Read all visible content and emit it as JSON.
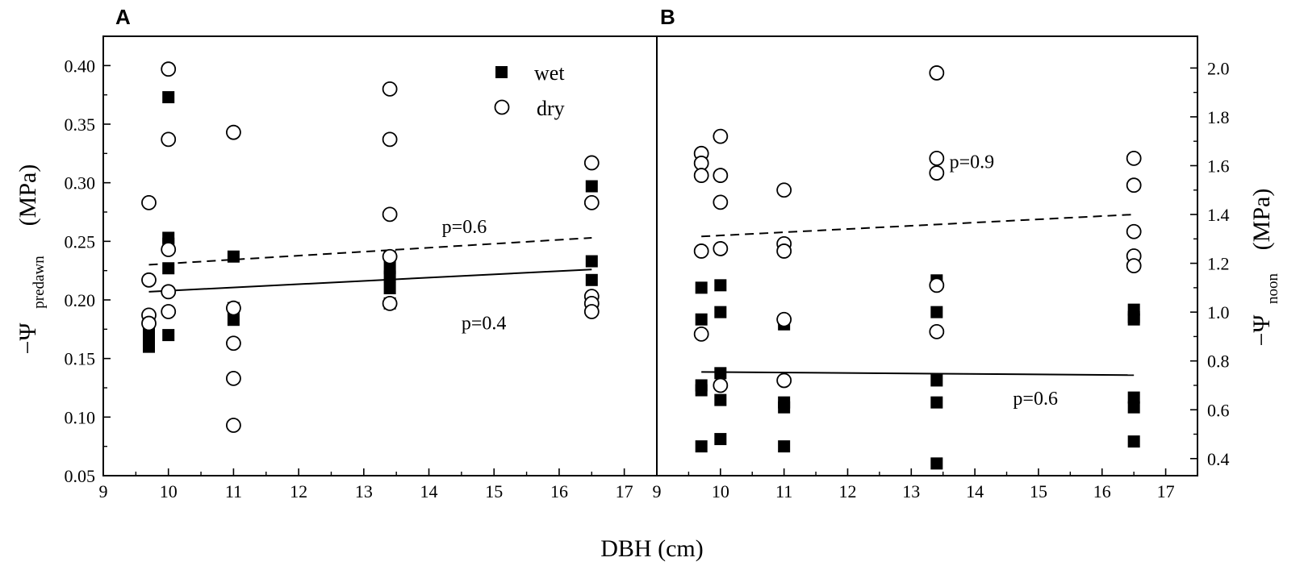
{
  "chart_data": [
    {
      "type": "scatter",
      "panel_label": "A",
      "xlabel": "DBH (cm)",
      "ylabel_main": "−Ψ",
      "ylabel_sub": "predawn",
      "ylabel_unit": "(MPa)",
      "xlim": [
        9,
        17.5
      ],
      "ylim": [
        0.05,
        0.425
      ],
      "xticks": [
        9,
        10,
        11,
        12,
        13,
        14,
        15,
        16,
        17
      ],
      "yticks": [
        "0.05",
        "0.10",
        "0.15",
        "0.20",
        "0.25",
        "0.30",
        "0.35",
        "0.40"
      ],
      "legend": {
        "wet": "wet",
        "dry": "dry",
        "position": "top-right"
      },
      "series": [
        {
          "name": "wet",
          "marker": "filled-square",
          "points": [
            [
              9.7,
              0.16
            ],
            [
              9.7,
              0.165
            ],
            [
              9.7,
              0.17
            ],
            [
              9.7,
              0.175
            ],
            [
              10.0,
              0.373
            ],
            [
              10.0,
              0.253
            ],
            [
              10.0,
              0.248
            ],
            [
              10.0,
              0.227
            ],
            [
              10.0,
              0.17
            ],
            [
              11.0,
              0.237
            ],
            [
              11.0,
              0.193
            ],
            [
              11.0,
              0.183
            ],
            [
              13.4,
              0.237
            ],
            [
              13.4,
              0.227
            ],
            [
              13.4,
              0.22
            ],
            [
              13.4,
              0.21
            ],
            [
              13.4,
              0.197
            ],
            [
              16.5,
              0.297
            ],
            [
              16.5,
              0.233
            ],
            [
              16.5,
              0.217
            ],
            [
              16.5,
              0.197
            ]
          ]
        },
        {
          "name": "dry",
          "marker": "open-circle",
          "points": [
            [
              9.7,
              0.283
            ],
            [
              9.7,
              0.217
            ],
            [
              9.7,
              0.187
            ],
            [
              9.7,
              0.18
            ],
            [
              10.0,
              0.397
            ],
            [
              10.0,
              0.337
            ],
            [
              10.0,
              0.243
            ],
            [
              10.0,
              0.207
            ],
            [
              10.0,
              0.19
            ],
            [
              11.0,
              0.343
            ],
            [
              11.0,
              0.193
            ],
            [
              11.0,
              0.163
            ],
            [
              11.0,
              0.133
            ],
            [
              11.0,
              0.093
            ],
            [
              13.4,
              0.38
            ],
            [
              13.4,
              0.337
            ],
            [
              13.4,
              0.273
            ],
            [
              13.4,
              0.237
            ],
            [
              13.4,
              0.197
            ],
            [
              16.5,
              0.317
            ],
            [
              16.5,
              0.283
            ],
            [
              16.5,
              0.203
            ],
            [
              16.5,
              0.197
            ],
            [
              16.5,
              0.19
            ]
          ]
        }
      ],
      "fits": [
        {
          "series": "dry",
          "style": "dashed",
          "x": [
            9.7,
            16.5
          ],
          "y": [
            0.23,
            0.253
          ]
        },
        {
          "series": "wet",
          "style": "solid",
          "x": [
            9.7,
            16.5
          ],
          "y": [
            0.207,
            0.226
          ]
        }
      ],
      "annotations": [
        {
          "text": "p=0.6",
          "x": 14.2,
          "y": 0.257
        },
        {
          "text": "p=0.4",
          "x": 14.5,
          "y": 0.175
        }
      ]
    },
    {
      "type": "scatter",
      "panel_label": "B",
      "xlabel": "DBH (cm)",
      "ylabel_main": "−Ψ",
      "ylabel_sub": "noon",
      "ylabel_unit": "(MPa)",
      "xlim": [
        9,
        17.5
      ],
      "ylim": [
        0.33,
        2.13
      ],
      "xticks": [
        9,
        10,
        11,
        12,
        13,
        14,
        15,
        16,
        17
      ],
      "yticks": [
        "0.4",
        "0.6",
        "0.8",
        "1.0",
        "1.2",
        "1.4",
        "1.6",
        "1.8",
        "2.0"
      ],
      "series": [
        {
          "name": "wet",
          "marker": "filled-square",
          "points": [
            [
              9.7,
              1.1
            ],
            [
              9.7,
              0.97
            ],
            [
              9.7,
              0.7
            ],
            [
              9.7,
              0.68
            ],
            [
              9.7,
              0.45
            ],
            [
              10.0,
              1.11
            ],
            [
              10.0,
              1.0
            ],
            [
              10.0,
              0.75
            ],
            [
              10.0,
              0.64
            ],
            [
              10.0,
              0.48
            ],
            [
              11.0,
              0.95
            ],
            [
              11.0,
              0.63
            ],
            [
              11.0,
              0.61
            ],
            [
              11.0,
              0.45
            ],
            [
              13.4,
              1.13
            ],
            [
              13.4,
              1.0
            ],
            [
              13.4,
              0.72
            ],
            [
              13.4,
              0.63
            ],
            [
              13.4,
              0.38
            ],
            [
              16.5,
              1.01
            ],
            [
              16.5,
              0.98
            ],
            [
              16.5,
              0.97
            ],
            [
              16.5,
              0.65
            ],
            [
              16.5,
              0.61
            ],
            [
              16.5,
              0.47
            ]
          ]
        },
        {
          "name": "dry",
          "marker": "open-circle",
          "points": [
            [
              9.7,
              1.65
            ],
            [
              9.7,
              1.61
            ],
            [
              9.7,
              1.56
            ],
            [
              9.7,
              1.25
            ],
            [
              9.7,
              0.91
            ],
            [
              10.0,
              1.72
            ],
            [
              10.0,
              1.56
            ],
            [
              10.0,
              1.45
            ],
            [
              10.0,
              1.26
            ],
            [
              10.0,
              0.7
            ],
            [
              11.0,
              1.5
            ],
            [
              11.0,
              1.28
            ],
            [
              11.0,
              1.25
            ],
            [
              11.0,
              0.97
            ],
            [
              11.0,
              0.72
            ],
            [
              13.4,
              1.98
            ],
            [
              13.4,
              1.63
            ],
            [
              13.4,
              1.57
            ],
            [
              13.4,
              1.11
            ],
            [
              13.4,
              0.92
            ],
            [
              16.5,
              1.63
            ],
            [
              16.5,
              1.52
            ],
            [
              16.5,
              1.33
            ],
            [
              16.5,
              1.23
            ],
            [
              16.5,
              1.19
            ]
          ]
        }
      ],
      "fits": [
        {
          "series": "dry",
          "style": "dashed",
          "x": [
            9.7,
            16.5
          ],
          "y": [
            1.31,
            1.4
          ]
        },
        {
          "series": "wet",
          "style": "solid",
          "x": [
            9.7,
            16.5
          ],
          "y": [
            0.755,
            0.742
          ]
        }
      ],
      "annotations": [
        {
          "text": "p=0.9",
          "x": 13.6,
          "y": 1.59
        },
        {
          "text": "p=0.6",
          "x": 14.6,
          "y": 0.62
        }
      ]
    }
  ]
}
